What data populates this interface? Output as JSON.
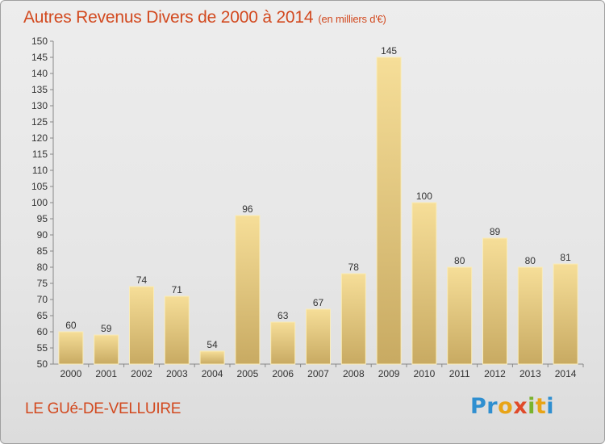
{
  "header": {
    "title": "Autres Revenus Divers de 2000 à 2014",
    "unit": "(en milliers d'€)"
  },
  "footer": {
    "town": "LE GUé-DE-VELLUIRE",
    "logo_letters": [
      {
        "ch": "P",
        "color": "#2f8fd0"
      },
      {
        "ch": "r",
        "color": "#2f8fd0"
      },
      {
        "ch": "o",
        "color": "#e8a417"
      },
      {
        "ch": "x",
        "color": "#e04a2a"
      },
      {
        "ch": "i",
        "color": "#7ab32e"
      },
      {
        "ch": "t",
        "color": "#e8a417"
      },
      {
        "ch": "i",
        "color": "#2f8fd0"
      }
    ]
  },
  "chart_data": {
    "type": "bar",
    "categories": [
      "2000",
      "2001",
      "2002",
      "2003",
      "2004",
      "2005",
      "2006",
      "2007",
      "2008",
      "2009",
      "2010",
      "2011",
      "2012",
      "2013",
      "2014"
    ],
    "values": [
      60,
      59,
      74,
      71,
      54,
      96,
      63,
      67,
      78,
      145,
      100,
      80,
      89,
      80,
      81
    ],
    "ylim": [
      50,
      150
    ],
    "ytick_step": 5,
    "grid": false,
    "colors": {
      "bar_light": "#f6de98",
      "bar_dark": "#c8aa62",
      "bar_border": "#f9ecb9",
      "axis": "#888888",
      "label": "#333333",
      "title": "#d2491f"
    }
  }
}
